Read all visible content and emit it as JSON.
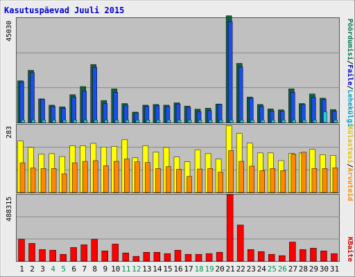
{
  "title": "Kasutuspäevad Juuli 2015",
  "colors": {
    "frame_bg": "#ececec",
    "plot_bg": "#c0c0c0",
    "title": "#0000cc",
    "visits": "#106040",
    "pages": "#0044cc",
    "files": "#1b4ee8",
    "hits": "#22d0e0",
    "sites": "#ffff00",
    "kbytes": "#ff0000",
    "visits_label": "#007050",
    "pages_label": "#0a6e6e",
    "files_label": "#0000cc",
    "hits_label": "#00a0c0",
    "sites_label": "#e0c000",
    "visits_orange": "#ff8800",
    "weekend_label": "#009050"
  },
  "chart_data": [
    {
      "type": "bar",
      "panel": "top",
      "ymax_label": "45030",
      "ylim": [
        0,
        45030
      ],
      "right_labels": [
        "Pöördumisi",
        "/",
        "Faile",
        "/",
        "Lehekülgi"
      ],
      "categories": [
        "1",
        "2",
        "3",
        "4",
        "5",
        "6",
        "7",
        "8",
        "9",
        "10",
        "11",
        "12",
        "13",
        "14",
        "15",
        "16",
        "17",
        "18",
        "19",
        "20",
        "21",
        "22",
        "23",
        "24",
        "25",
        "26",
        "27",
        "28",
        "29",
        "30",
        "31"
      ],
      "weekend_days": [
        "4",
        "5",
        "11",
        "12",
        "18",
        "19",
        "25",
        "26"
      ],
      "series": [
        {
          "name": "Pöördumisi",
          "values": [
            18000,
            22500,
            10200,
            7500,
            6800,
            12000,
            15500,
            25000,
            9500,
            14500,
            8200,
            4500,
            7500,
            7800,
            7500,
            8500,
            7100,
            5800,
            6200,
            8000,
            46000,
            25500,
            11000,
            7800,
            5900,
            5500,
            14500,
            8200,
            12300,
            10500,
            5600
          ]
        },
        {
          "name": "Faile",
          "values": [
            17500,
            21500,
            10000,
            7000,
            6200,
            11000,
            13500,
            23800,
            8200,
            13000,
            7500,
            4200,
            7000,
            7300,
            7000,
            8000,
            6600,
            4700,
            5200,
            7900,
            43500,
            24000,
            10500,
            7000,
            5000,
            4900,
            13000,
            7800,
            10800,
            10000,
            4900
          ]
        },
        {
          "name": "Lehekülgi",
          "values": [
            1100,
            1100,
            1100,
            1100,
            1100,
            1100,
            1100,
            1100,
            1100,
            1100,
            1100,
            1100,
            1100,
            1100,
            1100,
            1100,
            1100,
            1100,
            1100,
            1100,
            1100,
            1100,
            1100,
            1100,
            1100,
            1100,
            1100,
            1100,
            1100,
            4700,
            1100
          ]
        }
      ]
    },
    {
      "type": "bar",
      "panel": "middle",
      "ymax_label": "283",
      "ylim": [
        0,
        283
      ],
      "right_labels": [
        "Külastusi",
        "/",
        "Arvuteid"
      ],
      "categories": [
        "1",
        "2",
        "3",
        "4",
        "5",
        "6",
        "7",
        "8",
        "9",
        "10",
        "11",
        "12",
        "13",
        "14",
        "15",
        "16",
        "17",
        "18",
        "19",
        "20",
        "21",
        "22",
        "23",
        "24",
        "25",
        "26",
        "27",
        "28",
        "29",
        "30",
        "31"
      ],
      "series": [
        {
          "name": "Külastusi",
          "values": [
            215,
            188,
            160,
            162,
            150,
            195,
            195,
            205,
            190,
            192,
            220,
            145,
            195,
            168,
            188,
            148,
            128,
            178,
            162,
            140,
            278,
            246,
            206,
            165,
            165,
            133,
            163,
            165,
            180,
            158,
            155
          ]
        },
        {
          "name": "Arvuteid",
          "values": [
            124,
            102,
            100,
            100,
            78,
            124,
            130,
            133,
            112,
            130,
            140,
            128,
            125,
            100,
            108,
            97,
            67,
            98,
            100,
            85,
            175,
            130,
            110,
            91,
            100,
            91,
            160,
            168,
            100,
            100,
            103
          ]
        }
      ]
    },
    {
      "type": "bar",
      "panel": "bottom",
      "ymax_label": "488315",
      "ylim": [
        0,
        488315
      ],
      "right_labels": [
        "KBaite"
      ],
      "categories": [
        "1",
        "2",
        "3",
        "4",
        "5",
        "6",
        "7",
        "8",
        "9",
        "10",
        "11",
        "12",
        "13",
        "14",
        "15",
        "16",
        "17",
        "18",
        "19",
        "20",
        "21",
        "22",
        "23",
        "24",
        "25",
        "26",
        "27",
        "28",
        "29",
        "30",
        "31"
      ],
      "series": [
        {
          "name": "KBaite",
          "values": [
            160000,
            130000,
            85000,
            80000,
            50000,
            100000,
            120000,
            160000,
            75000,
            125000,
            60000,
            35000,
            65000,
            65000,
            55000,
            80000,
            50000,
            50000,
            55000,
            65000,
            488000,
            265000,
            85000,
            70000,
            50000,
            40000,
            140000,
            85000,
            95000,
            75000,
            55000
          ]
        }
      ]
    }
  ]
}
